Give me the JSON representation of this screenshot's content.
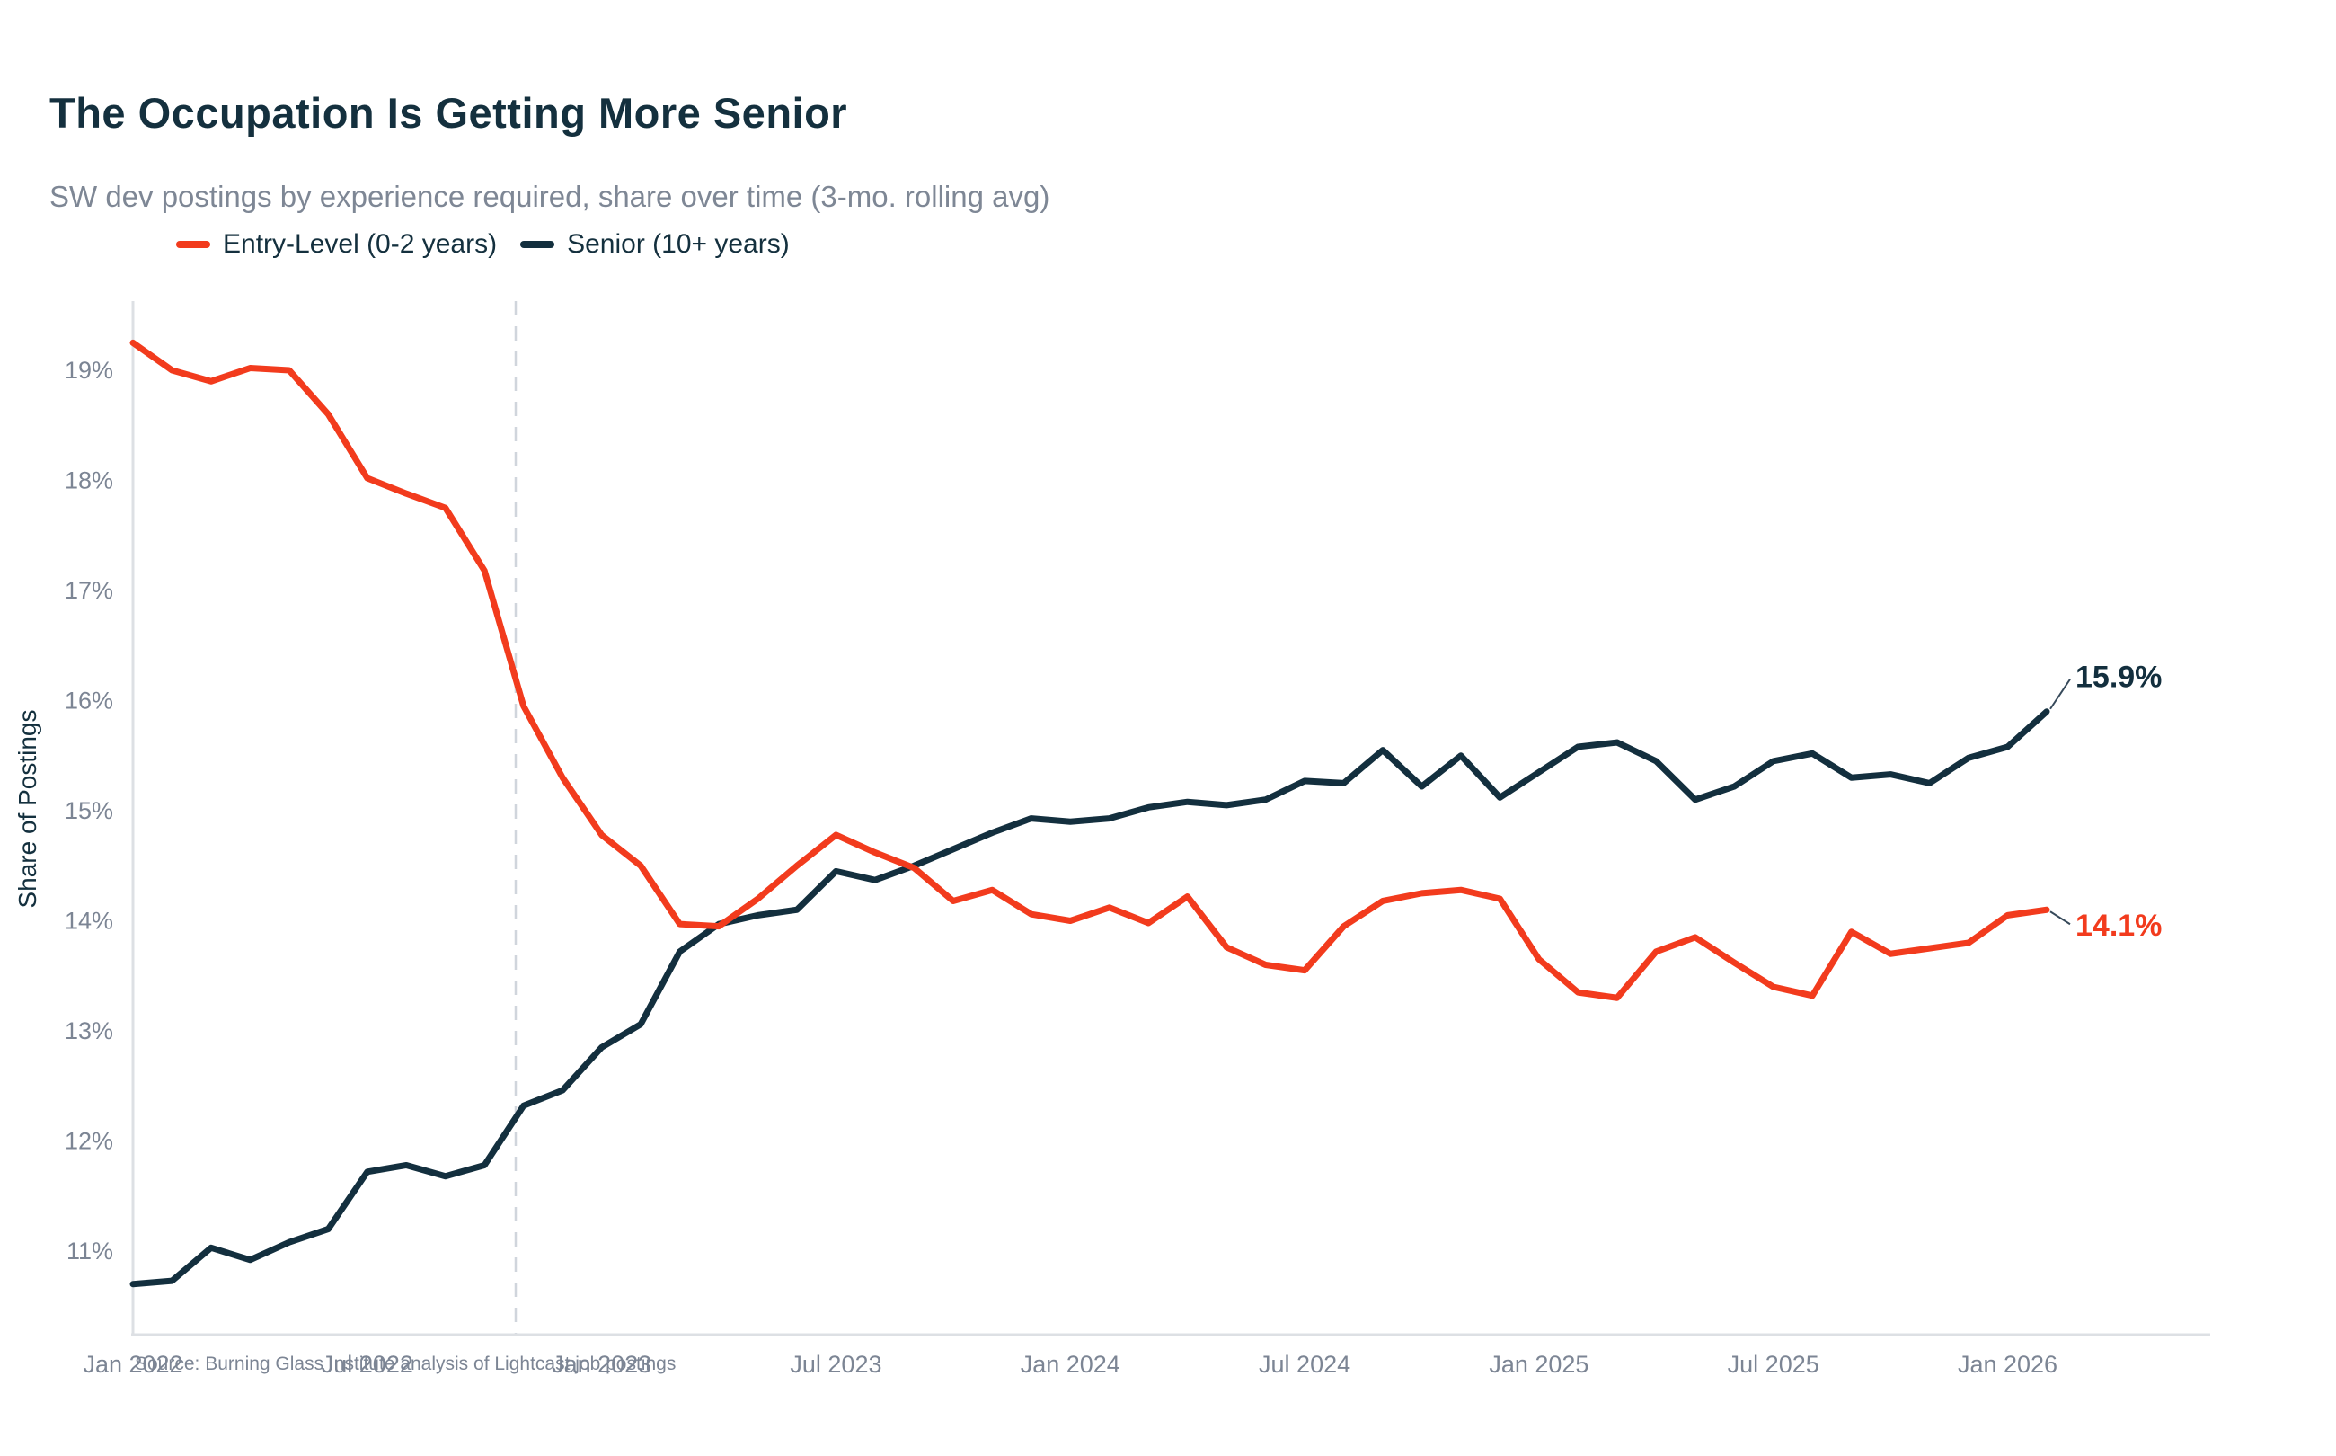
{
  "header": {
    "title": "The Occupation Is Getting More Senior",
    "subtitle": "SW dev postings by experience required, share over time (3-mo. rolling avg)"
  },
  "legend": [
    {
      "label": "Entry-Level (0-2 years)",
      "color": "#F23B1D"
    },
    {
      "label": "Senior (10+ years)",
      "color": "#132F3E"
    }
  ],
  "footer": {
    "source": "Source: Burning Glass Institute analysis of Lightcast job postings"
  },
  "colors": {
    "axis": "#DDE0E4",
    "dashed_marker": "#D0D5DC",
    "tick_text": "#7C8594",
    "navy_text": "#14303E",
    "connector": "#36495A",
    "background": "#FFFFFF"
  },
  "chart_data": {
    "type": "line",
    "title": "The Occupation Is Getting More Senior",
    "subtitle": "SW dev postings by experience required, share over time (3-mo. rolling avg)",
    "xlabel": "",
    "ylabel": "Share of Postings",
    "x_start": "Jan 2022",
    "x_end": "Feb 2026",
    "months_per_point": 1,
    "x_tick_labels": [
      "Jan 2022",
      "Jul 2022",
      "Jan 2023",
      "Jul 2023",
      "Jan 2024",
      "Jul 2024",
      "Jan 2025",
      "Jul 2025",
      "Jan 2026"
    ],
    "x_tick_month_indices": [
      0,
      6,
      12,
      18,
      24,
      30,
      36,
      42,
      48
    ],
    "y_tick_labels": [
      "19%",
      "18%",
      "17%",
      "16%",
      "15%",
      "14%",
      "13%",
      "12%",
      "11%"
    ],
    "y_tick_values": [
      19,
      18,
      17,
      16,
      15,
      14,
      13,
      12,
      11
    ],
    "ylim": [
      10.3,
      19.6
    ],
    "grid": false,
    "legend_position": "top-left",
    "annotation_dashed_vline_month_index": 9.8,
    "series": [
      {
        "name": "Entry-Level (0-2 years)",
        "color": "#F23B1D",
        "end_label": "14.1%",
        "values": [
          19.25,
          19.0,
          18.9,
          19.02,
          19.0,
          18.6,
          18.02,
          17.88,
          17.75,
          17.18,
          15.95,
          15.3,
          14.78,
          14.5,
          13.97,
          13.95,
          14.2,
          14.5,
          14.78,
          14.62,
          14.48,
          14.18,
          14.28,
          14.06,
          14.0,
          14.12,
          13.98,
          14.22,
          13.76,
          13.6,
          13.55,
          13.95,
          14.18,
          14.25,
          14.28,
          14.2,
          13.65,
          13.35,
          13.3,
          13.72,
          13.85,
          13.62,
          13.4,
          13.32,
          13.9,
          13.7,
          13.75,
          13.8,
          14.05,
          14.1
        ]
      },
      {
        "name": "Senior (10+ years)",
        "color": "#132F3E",
        "end_label": "15.9%",
        "values": [
          10.7,
          10.73,
          11.03,
          10.92,
          11.08,
          11.2,
          11.72,
          11.78,
          11.68,
          11.78,
          12.32,
          12.46,
          12.85,
          13.06,
          13.72,
          13.97,
          14.05,
          14.1,
          14.45,
          14.37,
          14.5,
          14.65,
          14.8,
          14.93,
          14.9,
          14.93,
          15.03,
          15.08,
          15.05,
          15.1,
          15.27,
          15.25,
          15.55,
          15.22,
          15.5,
          15.12,
          15.35,
          15.58,
          15.62,
          15.45,
          15.1,
          15.22,
          15.45,
          15.52,
          15.3,
          15.33,
          15.25,
          15.48,
          15.58,
          15.9
        ]
      }
    ]
  }
}
